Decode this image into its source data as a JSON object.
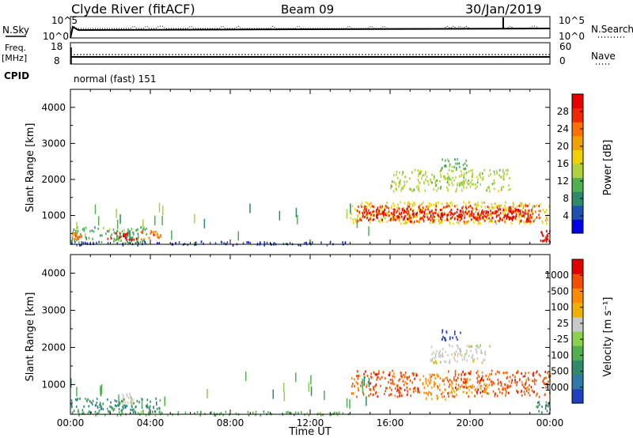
{
  "header": {
    "station": "Clyde River (fitACF)",
    "beam": "Beam 09",
    "date": "30/Jan/2019"
  },
  "side_labels": {
    "nsky": "N.Sky",
    "freq": "Freq.",
    "mhz": "[MHz]",
    "cpid": "CPID",
    "nsearch": "N.Search",
    "nave": "Nave"
  },
  "cpid_text": "normal (fast) 151",
  "noise_panel": {
    "left_ticks": [
      "10^5",
      "10^0"
    ],
    "right_ticks": [
      "10^5",
      "10^0"
    ]
  },
  "freq_panel": {
    "left_ticks": [
      "18",
      "8"
    ],
    "right_ticks": [
      "60",
      "0"
    ]
  },
  "chart_data": [
    {
      "type": "heatmap",
      "name": "power",
      "ylabel": "Slant Range [km]",
      "y_ticks": [
        1000,
        2000,
        3000,
        4000
      ],
      "ylim": [
        200,
        4500
      ],
      "x_ticks": [
        "00:00",
        "04:00",
        "08:00",
        "12:00",
        "16:00",
        "20:00",
        "00:00"
      ],
      "xlim_hours": [
        0,
        24
      ],
      "colorbar": {
        "label": "Power [dB]",
        "ticks": [
          "28",
          "24",
          "20",
          "16",
          "12",
          "8",
          "4"
        ],
        "colors": [
          "#0000e6",
          "#2050b0",
          "#2e8a68",
          "#50b050",
          "#b0d040",
          "#f0d000",
          "#f0a000",
          "#ff7000",
          "#f02800",
          "#e80000"
        ]
      },
      "regions": [
        {
          "t0": 0,
          "t1": 3.8,
          "r0": 250,
          "r1": 700,
          "c": 3
        },
        {
          "t0": 0,
          "t1": 0.6,
          "r0": 350,
          "r1": 550,
          "c": 7
        },
        {
          "t0": 1.8,
          "t1": 3.3,
          "r0": 350,
          "r1": 550,
          "c": 9
        },
        {
          "t0": 3.5,
          "t1": 4.5,
          "r0": 350,
          "r1": 600,
          "c": 7
        },
        {
          "t0": 0,
          "t1": 14,
          "r0": 200,
          "r1": 300,
          "c": 1
        },
        {
          "t0": 14,
          "t1": 24,
          "r0": 800,
          "r1": 1400,
          "c": 5
        },
        {
          "t0": 14.3,
          "t1": 23.5,
          "r0": 850,
          "r1": 1300,
          "c": 8
        },
        {
          "t0": 14.5,
          "t1": 23,
          "r0": 900,
          "r1": 1200,
          "c": 9
        },
        {
          "t0": 16,
          "t1": 22,
          "r0": 1700,
          "r1": 2300,
          "c": 4
        },
        {
          "t0": 18.5,
          "t1": 20,
          "r0": 2300,
          "r1": 2600,
          "c": 3
        },
        {
          "t0": 23.5,
          "t1": 24,
          "r0": 250,
          "r1": 600,
          "c": 9
        }
      ]
    },
    {
      "type": "heatmap",
      "name": "velocity",
      "ylabel": "Slant Range [km]",
      "xlabel": "Time UT",
      "y_ticks": [
        1000,
        2000,
        3000,
        4000
      ],
      "ylim": [
        200,
        4500
      ],
      "x_ticks": [
        "00:00",
        "04:00",
        "08:00",
        "12:00",
        "16:00",
        "20:00",
        "00:00"
      ],
      "xlim_hours": [
        0,
        24
      ],
      "colorbar": {
        "label": "Velocity [m s⁻¹]",
        "ticks": [
          "1000",
          "500",
          "100",
          "25",
          "-25",
          "-100",
          "-500",
          "-1000"
        ],
        "colors": [
          "#2040c0",
          "#3078a8",
          "#2e8a68",
          "#50b050",
          "#8cd050",
          "#c8c8c8",
          "#f0b000",
          "#ff8c00",
          "#f05000",
          "#e00000"
        ]
      },
      "regions": [
        {
          "t0": 0,
          "t1": 4.5,
          "r0": 250,
          "r1": 650,
          "c": 2
        },
        {
          "t0": 0,
          "t1": 14,
          "r0": 200,
          "r1": 300,
          "c": 3
        },
        {
          "t0": 2.5,
          "t1": 3.2,
          "r0": 500,
          "r1": 800,
          "c": 5
        },
        {
          "t0": 14,
          "t1": 17.5,
          "r0": 700,
          "r1": 1400,
          "c": 8
        },
        {
          "t0": 17.5,
          "t1": 18.8,
          "r0": 600,
          "r1": 1300,
          "c": 7
        },
        {
          "t0": 18.8,
          "t1": 24,
          "r0": 700,
          "r1": 1400,
          "c": 8
        },
        {
          "t0": 19,
          "t1": 21,
          "r0": 800,
          "r1": 1100,
          "c": 6
        },
        {
          "t0": 18,
          "t1": 21,
          "r0": 1600,
          "r1": 2100,
          "c": 5
        },
        {
          "t0": 18.5,
          "t1": 19.5,
          "r0": 2200,
          "r1": 2500,
          "c": 0
        },
        {
          "t0": 23.3,
          "t1": 24,
          "r0": 250,
          "r1": 600,
          "c": 2
        }
      ]
    }
  ]
}
